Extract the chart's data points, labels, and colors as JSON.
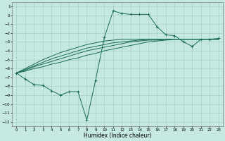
{
  "xlabel": "Humidex (Indice chaleur)",
  "bg_color": "#c5e8e0",
  "grid_color": "#a8cfc8",
  "line_color": "#1a6b58",
  "xlim": [
    -0.5,
    23.5
  ],
  "ylim": [
    -12.5,
    1.5
  ],
  "xticks": [
    0,
    1,
    2,
    3,
    4,
    5,
    6,
    7,
    8,
    9,
    10,
    11,
    12,
    13,
    14,
    15,
    16,
    17,
    18,
    19,
    20,
    21,
    22,
    23
  ],
  "yticks": [
    1,
    0,
    -1,
    -2,
    -3,
    -4,
    -5,
    -6,
    -7,
    -8,
    -9,
    -10,
    -11,
    -12
  ],
  "line1_x": [
    0,
    1,
    2,
    3,
    4,
    5,
    6,
    7,
    8,
    9,
    10,
    11,
    12,
    13,
    14,
    15,
    16,
    17,
    18,
    19,
    20,
    21,
    22,
    23
  ],
  "line1_y": [
    -6.5,
    -7.2,
    -7.8,
    -7.9,
    -8.5,
    -9.0,
    -8.6,
    -8.6,
    -11.8,
    -7.3,
    -2.5,
    0.5,
    0.2,
    0.1,
    0.1,
    0.1,
    -1.3,
    -2.2,
    -2.3,
    -3.0,
    -3.5,
    -2.7,
    -2.7,
    -2.6
  ],
  "line2_x": [
    0,
    1,
    2,
    3,
    4,
    5,
    6,
    7,
    8,
    9,
    10,
    11,
    12,
    13,
    14,
    15,
    16,
    17,
    18,
    19,
    20,
    21,
    22,
    23
  ],
  "line2_y": [
    -6.5,
    -6.3,
    -6.0,
    -5.8,
    -5.5,
    -5.3,
    -5.0,
    -4.8,
    -4.5,
    -4.3,
    -4.0,
    -3.8,
    -3.6,
    -3.4,
    -3.2,
    -3.0,
    -2.9,
    -2.8,
    -2.7,
    -2.7,
    -2.7,
    -2.7,
    -2.7,
    -2.7
  ],
  "line3_x": [
    0,
    1,
    2,
    3,
    4,
    5,
    6,
    7,
    8,
    9,
    10,
    11,
    12,
    13,
    14,
    15,
    16,
    17,
    18,
    19,
    20,
    21,
    22,
    23
  ],
  "line3_y": [
    -6.5,
    -6.2,
    -5.8,
    -5.5,
    -5.2,
    -4.9,
    -4.6,
    -4.3,
    -4.0,
    -3.8,
    -3.6,
    -3.4,
    -3.2,
    -3.0,
    -2.9,
    -2.8,
    -2.8,
    -2.7,
    -2.7,
    -2.7,
    -2.7,
    -2.7,
    -2.7,
    -2.7
  ],
  "line4_x": [
    0,
    1,
    2,
    3,
    4,
    5,
    6,
    7,
    8,
    9,
    10,
    11,
    12,
    13,
    14,
    15,
    16,
    17,
    18,
    19,
    20,
    21,
    22,
    23
  ],
  "line4_y": [
    -6.5,
    -6.1,
    -5.7,
    -5.3,
    -4.9,
    -4.6,
    -4.3,
    -4.0,
    -3.7,
    -3.5,
    -3.3,
    -3.1,
    -3.0,
    -2.9,
    -2.8,
    -2.7,
    -2.7,
    -2.7,
    -2.7,
    -2.7,
    -2.7,
    -2.7,
    -2.7,
    -2.7
  ],
  "line5_x": [
    0,
    1,
    2,
    3,
    4,
    5,
    6,
    7,
    8,
    9,
    10,
    11,
    12,
    13,
    14,
    15,
    16,
    17,
    18,
    19,
    20,
    21,
    22,
    23
  ],
  "line5_y": [
    -6.5,
    -6.0,
    -5.5,
    -5.0,
    -4.6,
    -4.2,
    -3.9,
    -3.6,
    -3.3,
    -3.1,
    -2.9,
    -2.8,
    -2.7,
    -2.7,
    -2.7,
    -2.7,
    -2.7,
    -2.7,
    -2.7,
    -2.7,
    -2.7,
    -2.7,
    -2.7,
    -2.7
  ]
}
